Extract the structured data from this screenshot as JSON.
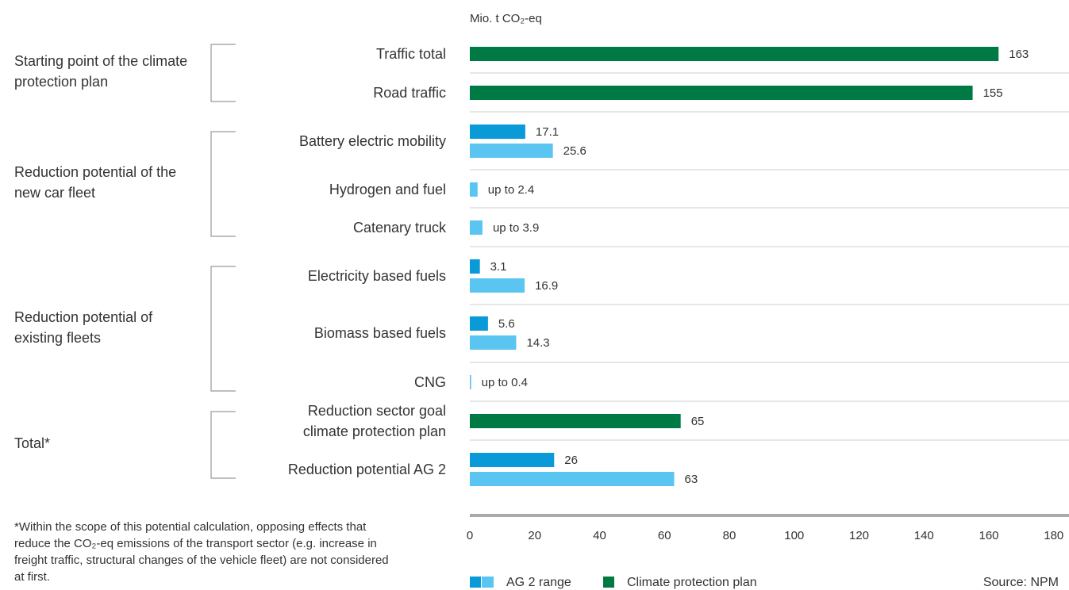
{
  "chart_data": {
    "type": "bar",
    "orientation": "horizontal",
    "axis_label": "Mio. t CO₂-eq",
    "categories": [
      "Traffic total",
      "Road traffic",
      "Battery electric mobility",
      "Hydrogen and fuel",
      "Catenary truck",
      "Electricity based fuels",
      "Biomass based fuels",
      "CNG",
      "Reduction sector goal climate protection plan",
      "Reduction potential AG 2"
    ],
    "groups": [
      {
        "label": "Starting point of the climate protection plan",
        "rows": [
          0,
          1
        ]
      },
      {
        "label": "Reduction potential of the new car fleet",
        "rows": [
          2,
          3,
          4
        ]
      },
      {
        "label": "Reduction potential of existing fleets",
        "rows": [
          5,
          6,
          7
        ]
      },
      {
        "label": "Total*",
        "rows": [
          8,
          9
        ]
      }
    ],
    "series": [
      {
        "name": "Climate protection plan",
        "color": "#007a45",
        "values": [
          163,
          155,
          null,
          null,
          null,
          null,
          null,
          null,
          65,
          null
        ]
      },
      {
        "name": "AG 2 range",
        "color": "#0a9ad8",
        "values": [
          null,
          null,
          17.1,
          null,
          null,
          3.1,
          5.6,
          null,
          null,
          26
        ]
      },
      {
        "color": "#5bc5f2",
        "values": [
          null,
          null,
          25.6,
          2.4,
          3.9,
          16.9,
          14.3,
          0.4,
          null,
          63
        ],
        "value_labels": [
          null,
          null,
          null,
          "up to 2.4",
          "up to 3.9",
          null,
          null,
          "up to 0.4",
          null,
          null
        ]
      }
    ],
    "xlim": [
      0,
      180
    ],
    "xticks": [
      0,
      20,
      40,
      60,
      80,
      100,
      120,
      140,
      160,
      180
    ],
    "footnote": "*Within the scope of this potential calculation, opposing effects that reduce the CO₂-eq emissions of the transport sector (e.g. increase in freight traffic, structural changes of the vehicle fleet) are not considered at first.",
    "source": "Source: NPM"
  }
}
